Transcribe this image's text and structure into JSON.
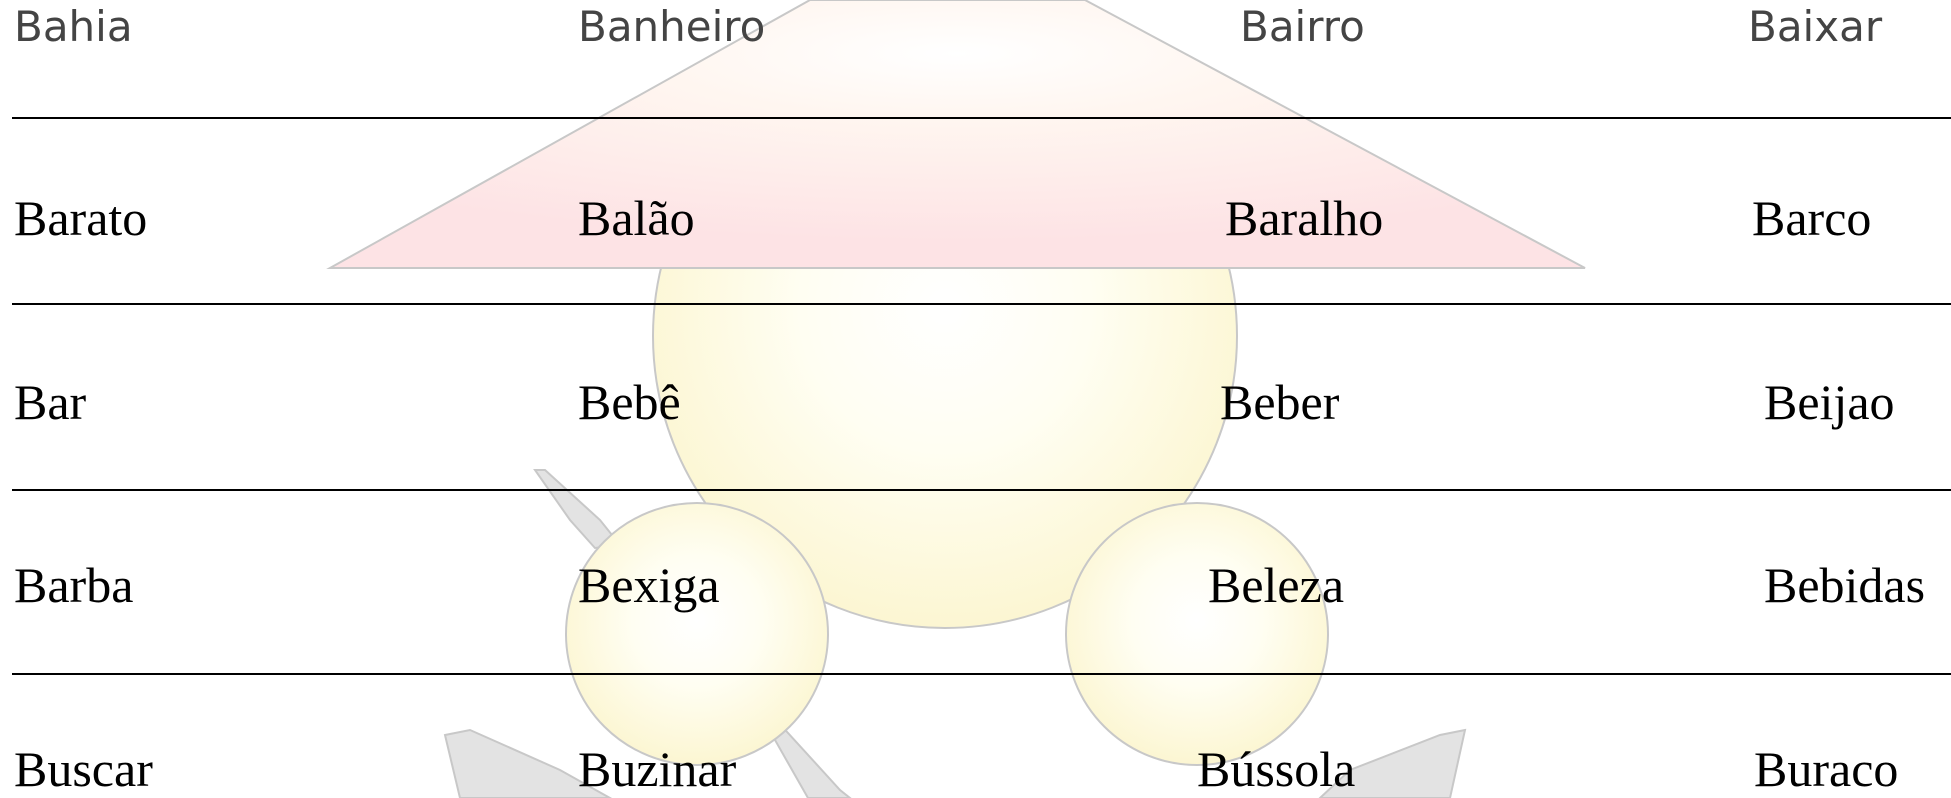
{
  "table": {
    "rows": [
      [
        "Bahia",
        "Banheiro",
        "Bairro",
        "Baixar"
      ],
      [
        "Barato",
        "Balão",
        "Baralho",
        "Barco"
      ],
      [
        "Bar",
        "Bebê",
        "Beber",
        "Beijao"
      ],
      [
        "Barba",
        "Bexiga",
        "Beleza",
        "Bebidas"
      ],
      [
        "Buscar",
        "Buzinar",
        "Bússola",
        "Buraco"
      ]
    ]
  }
}
